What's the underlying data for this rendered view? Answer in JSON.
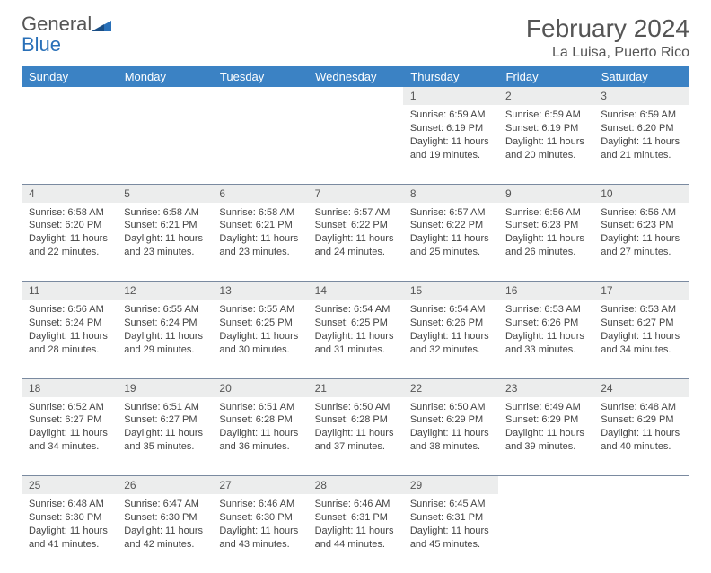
{
  "brand": {
    "name1": "General",
    "name2": "Blue"
  },
  "title": "February 2024",
  "location": "La Luisa, Puerto Rico",
  "colors": {
    "header_bg": "#3b82c4",
    "header_text": "#ffffff",
    "daynum_bg": "#eceded",
    "row_border": "#7a8aa0",
    "body_text": "#444444",
    "brand_blue": "#2970b8"
  },
  "dayHeaders": [
    "Sunday",
    "Monday",
    "Tuesday",
    "Wednesday",
    "Thursday",
    "Friday",
    "Saturday"
  ],
  "weeks": [
    [
      null,
      null,
      null,
      null,
      {
        "num": "1",
        "sunrise": "Sunrise: 6:59 AM",
        "sunset": "Sunset: 6:19 PM",
        "daylight": "Daylight: 11 hours and 19 minutes."
      },
      {
        "num": "2",
        "sunrise": "Sunrise: 6:59 AM",
        "sunset": "Sunset: 6:19 PM",
        "daylight": "Daylight: 11 hours and 20 minutes."
      },
      {
        "num": "3",
        "sunrise": "Sunrise: 6:59 AM",
        "sunset": "Sunset: 6:20 PM",
        "daylight": "Daylight: 11 hours and 21 minutes."
      }
    ],
    [
      {
        "num": "4",
        "sunrise": "Sunrise: 6:58 AM",
        "sunset": "Sunset: 6:20 PM",
        "daylight": "Daylight: 11 hours and 22 minutes."
      },
      {
        "num": "5",
        "sunrise": "Sunrise: 6:58 AM",
        "sunset": "Sunset: 6:21 PM",
        "daylight": "Daylight: 11 hours and 23 minutes."
      },
      {
        "num": "6",
        "sunrise": "Sunrise: 6:58 AM",
        "sunset": "Sunset: 6:21 PM",
        "daylight": "Daylight: 11 hours and 23 minutes."
      },
      {
        "num": "7",
        "sunrise": "Sunrise: 6:57 AM",
        "sunset": "Sunset: 6:22 PM",
        "daylight": "Daylight: 11 hours and 24 minutes."
      },
      {
        "num": "8",
        "sunrise": "Sunrise: 6:57 AM",
        "sunset": "Sunset: 6:22 PM",
        "daylight": "Daylight: 11 hours and 25 minutes."
      },
      {
        "num": "9",
        "sunrise": "Sunrise: 6:56 AM",
        "sunset": "Sunset: 6:23 PM",
        "daylight": "Daylight: 11 hours and 26 minutes."
      },
      {
        "num": "10",
        "sunrise": "Sunrise: 6:56 AM",
        "sunset": "Sunset: 6:23 PM",
        "daylight": "Daylight: 11 hours and 27 minutes."
      }
    ],
    [
      {
        "num": "11",
        "sunrise": "Sunrise: 6:56 AM",
        "sunset": "Sunset: 6:24 PM",
        "daylight": "Daylight: 11 hours and 28 minutes."
      },
      {
        "num": "12",
        "sunrise": "Sunrise: 6:55 AM",
        "sunset": "Sunset: 6:24 PM",
        "daylight": "Daylight: 11 hours and 29 minutes."
      },
      {
        "num": "13",
        "sunrise": "Sunrise: 6:55 AM",
        "sunset": "Sunset: 6:25 PM",
        "daylight": "Daylight: 11 hours and 30 minutes."
      },
      {
        "num": "14",
        "sunrise": "Sunrise: 6:54 AM",
        "sunset": "Sunset: 6:25 PM",
        "daylight": "Daylight: 11 hours and 31 minutes."
      },
      {
        "num": "15",
        "sunrise": "Sunrise: 6:54 AM",
        "sunset": "Sunset: 6:26 PM",
        "daylight": "Daylight: 11 hours and 32 minutes."
      },
      {
        "num": "16",
        "sunrise": "Sunrise: 6:53 AM",
        "sunset": "Sunset: 6:26 PM",
        "daylight": "Daylight: 11 hours and 33 minutes."
      },
      {
        "num": "17",
        "sunrise": "Sunrise: 6:53 AM",
        "sunset": "Sunset: 6:27 PM",
        "daylight": "Daylight: 11 hours and 34 minutes."
      }
    ],
    [
      {
        "num": "18",
        "sunrise": "Sunrise: 6:52 AM",
        "sunset": "Sunset: 6:27 PM",
        "daylight": "Daylight: 11 hours and 34 minutes."
      },
      {
        "num": "19",
        "sunrise": "Sunrise: 6:51 AM",
        "sunset": "Sunset: 6:27 PM",
        "daylight": "Daylight: 11 hours and 35 minutes."
      },
      {
        "num": "20",
        "sunrise": "Sunrise: 6:51 AM",
        "sunset": "Sunset: 6:28 PM",
        "daylight": "Daylight: 11 hours and 36 minutes."
      },
      {
        "num": "21",
        "sunrise": "Sunrise: 6:50 AM",
        "sunset": "Sunset: 6:28 PM",
        "daylight": "Daylight: 11 hours and 37 minutes."
      },
      {
        "num": "22",
        "sunrise": "Sunrise: 6:50 AM",
        "sunset": "Sunset: 6:29 PM",
        "daylight": "Daylight: 11 hours and 38 minutes."
      },
      {
        "num": "23",
        "sunrise": "Sunrise: 6:49 AM",
        "sunset": "Sunset: 6:29 PM",
        "daylight": "Daylight: 11 hours and 39 minutes."
      },
      {
        "num": "24",
        "sunrise": "Sunrise: 6:48 AM",
        "sunset": "Sunset: 6:29 PM",
        "daylight": "Daylight: 11 hours and 40 minutes."
      }
    ],
    [
      {
        "num": "25",
        "sunrise": "Sunrise: 6:48 AM",
        "sunset": "Sunset: 6:30 PM",
        "daylight": "Daylight: 11 hours and 41 minutes."
      },
      {
        "num": "26",
        "sunrise": "Sunrise: 6:47 AM",
        "sunset": "Sunset: 6:30 PM",
        "daylight": "Daylight: 11 hours and 42 minutes."
      },
      {
        "num": "27",
        "sunrise": "Sunrise: 6:46 AM",
        "sunset": "Sunset: 6:30 PM",
        "daylight": "Daylight: 11 hours and 43 minutes."
      },
      {
        "num": "28",
        "sunrise": "Sunrise: 6:46 AM",
        "sunset": "Sunset: 6:31 PM",
        "daylight": "Daylight: 11 hours and 44 minutes."
      },
      {
        "num": "29",
        "sunrise": "Sunrise: 6:45 AM",
        "sunset": "Sunset: 6:31 PM",
        "daylight": "Daylight: 11 hours and 45 minutes."
      },
      null,
      null
    ]
  ]
}
